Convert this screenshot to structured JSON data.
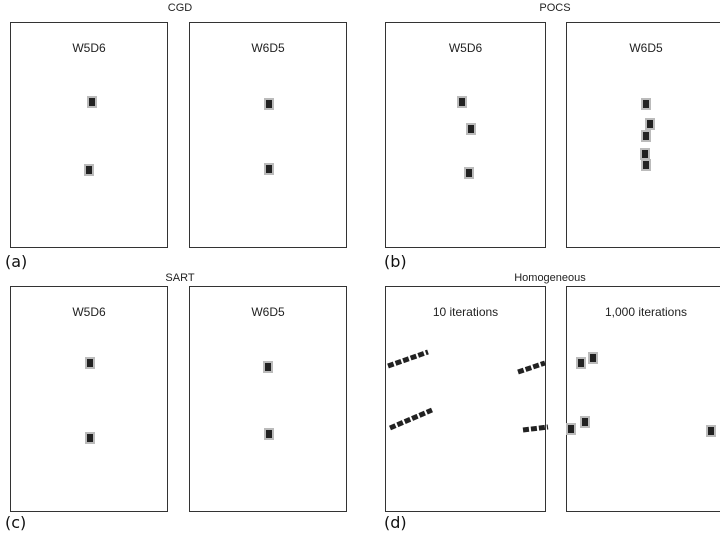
{
  "groups": [
    {
      "title": "CGD",
      "label": "(a)",
      "panels": [
        {
          "title": "W5D6"
        },
        {
          "title": "W6D5"
        }
      ]
    },
    {
      "title": "POCS",
      "label": "(b)",
      "panels": [
        {
          "title": "W5D6"
        },
        {
          "title": "W6D5"
        }
      ]
    },
    {
      "title": "SART",
      "label": "(c)",
      "panels": [
        {
          "title": "W5D6"
        },
        {
          "title": "W6D5"
        }
      ]
    },
    {
      "title": "Homogeneous",
      "label": "(d)",
      "panels": [
        {
          "title": "10 iterations"
        },
        {
          "title": "1,000 iterations"
        }
      ]
    }
  ]
}
